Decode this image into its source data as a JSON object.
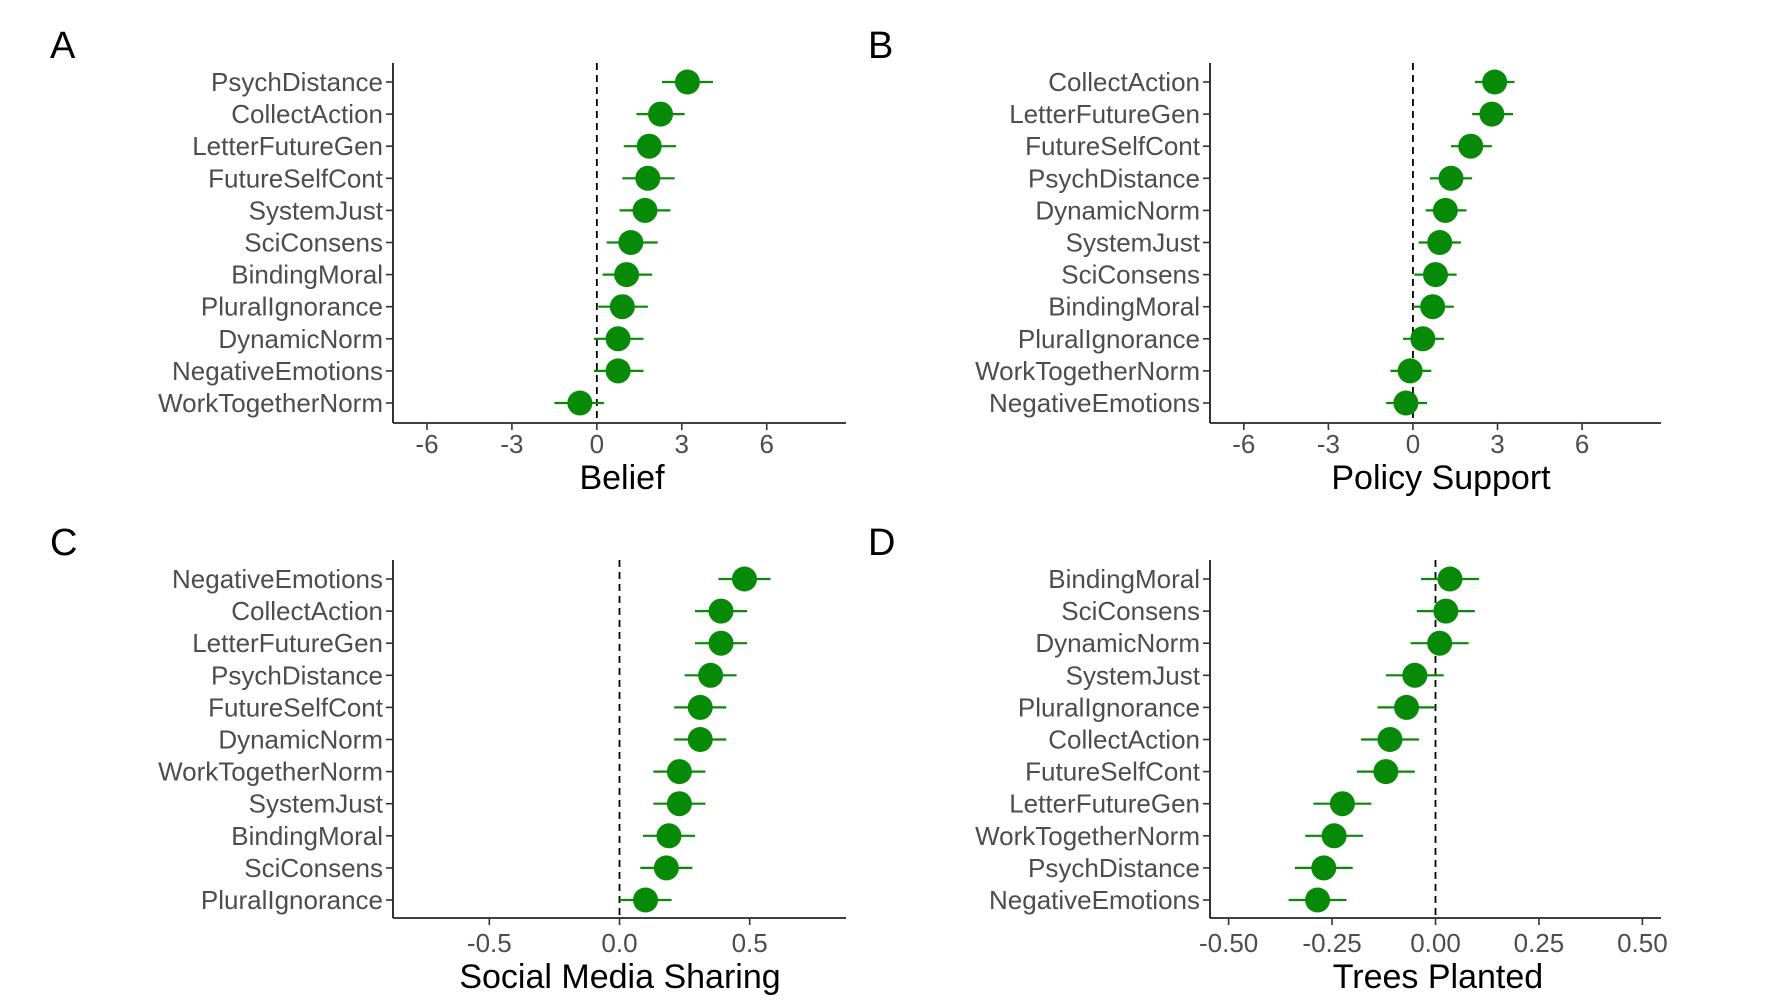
{
  "colors": {
    "point": "#078a07",
    "errorbar": "#078a07"
  },
  "chart_data": [
    {
      "type": "scatter",
      "panel_label": "A",
      "xlabel": "Belief",
      "ylabel": "",
      "xlim": [
        -7.2,
        8.8
      ],
      "xticks": [
        -6,
        -3,
        0,
        3,
        6
      ],
      "xtick_labels": [
        "-6",
        "-3",
        "0",
        "3",
        "6"
      ],
      "reference_line": 0,
      "points": [
        {
          "label": "PsychDistance",
          "value": 3.2,
          "low": 2.3,
          "high": 4.1
        },
        {
          "label": "CollectAction",
          "value": 2.25,
          "low": 1.4,
          "high": 3.1
        },
        {
          "label": "LetterFutureGen",
          "value": 1.85,
          "low": 0.95,
          "high": 2.8
        },
        {
          "label": "FutureSelfCont",
          "value": 1.8,
          "low": 0.9,
          "high": 2.75
        },
        {
          "label": "SystemJust",
          "value": 1.7,
          "low": 0.8,
          "high": 2.6
        },
        {
          "label": "SciConsens",
          "value": 1.2,
          "low": 0.35,
          "high": 2.15
        },
        {
          "label": "BindingMoral",
          "value": 1.05,
          "low": 0.2,
          "high": 1.95
        },
        {
          "label": "PluralIgnorance",
          "value": 0.9,
          "low": 0.05,
          "high": 1.8
        },
        {
          "label": "DynamicNorm",
          "value": 0.75,
          "low": -0.1,
          "high": 1.65
        },
        {
          "label": "NegativeEmotions",
          "value": 0.75,
          "low": -0.1,
          "high": 1.65
        },
        {
          "label": "WorkTogetherNorm",
          "value": -0.6,
          "low": -1.5,
          "high": 0.25
        }
      ]
    },
    {
      "type": "scatter",
      "panel_label": "B",
      "xlabel": "Policy Support",
      "ylabel": "",
      "xlim": [
        -7.2,
        8.8
      ],
      "xticks": [
        -6,
        -3,
        0,
        3,
        6
      ],
      "xtick_labels": [
        "-6",
        "-3",
        "0",
        "3",
        "6"
      ],
      "reference_line": 0,
      "points": [
        {
          "label": "CollectAction",
          "value": 2.9,
          "low": 2.2,
          "high": 3.6
        },
        {
          "label": "LetterFutureGen",
          "value": 2.8,
          "low": 2.1,
          "high": 3.55
        },
        {
          "label": "FutureSelfCont",
          "value": 2.05,
          "low": 1.35,
          "high": 2.8
        },
        {
          "label": "PsychDistance",
          "value": 1.35,
          "low": 0.6,
          "high": 2.1
        },
        {
          "label": "DynamicNorm",
          "value": 1.15,
          "low": 0.45,
          "high": 1.9
        },
        {
          "label": "SystemJust",
          "value": 0.95,
          "low": 0.2,
          "high": 1.7
        },
        {
          "label": "SciConsens",
          "value": 0.8,
          "low": 0.05,
          "high": 1.55
        },
        {
          "label": "BindingMoral",
          "value": 0.7,
          "low": 0.0,
          "high": 1.45
        },
        {
          "label": "PluralIgnorance",
          "value": 0.35,
          "low": -0.35,
          "high": 1.1
        },
        {
          "label": "WorkTogetherNorm",
          "value": -0.1,
          "low": -0.8,
          "high": 0.65
        },
        {
          "label": "NegativeEmotions",
          "value": -0.25,
          "low": -0.95,
          "high": 0.5
        }
      ]
    },
    {
      "type": "scatter",
      "panel_label": "C",
      "xlabel": "Social Media Sharing",
      "ylabel": "",
      "xlim": [
        -0.87,
        0.87
      ],
      "xticks": [
        -0.5,
        0.0,
        0.5
      ],
      "xtick_labels": [
        "-0.5",
        "0.0",
        "0.5"
      ],
      "reference_line": 0,
      "points": [
        {
          "label": "NegativeEmotions",
          "value": 0.48,
          "low": 0.38,
          "high": 0.58
        },
        {
          "label": "CollectAction",
          "value": 0.39,
          "low": 0.29,
          "high": 0.49
        },
        {
          "label": "LetterFutureGen",
          "value": 0.39,
          "low": 0.29,
          "high": 0.49
        },
        {
          "label": "PsychDistance",
          "value": 0.35,
          "low": 0.25,
          "high": 0.45
        },
        {
          "label": "FutureSelfCont",
          "value": 0.31,
          "low": 0.21,
          "high": 0.41
        },
        {
          "label": "DynamicNorm",
          "value": 0.31,
          "low": 0.21,
          "high": 0.41
        },
        {
          "label": "WorkTogetherNorm",
          "value": 0.23,
          "low": 0.13,
          "high": 0.33
        },
        {
          "label": "SystemJust",
          "value": 0.23,
          "low": 0.13,
          "high": 0.33
        },
        {
          "label": "BindingMoral",
          "value": 0.19,
          "low": 0.09,
          "high": 0.29
        },
        {
          "label": "SciConsens",
          "value": 0.18,
          "low": 0.08,
          "high": 0.28
        },
        {
          "label": "PluralIgnorance",
          "value": 0.1,
          "low": 0.0,
          "high": 0.2
        }
      ]
    },
    {
      "type": "scatter",
      "panel_label": "D",
      "xlabel": "Trees Planted",
      "ylabel": "",
      "xlim": [
        -0.545,
        0.545
      ],
      "xticks": [
        -0.5,
        -0.25,
        0.0,
        0.25,
        0.5
      ],
      "xtick_labels": [
        "-0.50",
        "-0.25",
        "0.00",
        "0.25",
        "0.50"
      ],
      "reference_line": 0,
      "points": [
        {
          "label": "BindingMoral",
          "value": 0.035,
          "low": -0.035,
          "high": 0.105
        },
        {
          "label": "SciConsens",
          "value": 0.025,
          "low": -0.045,
          "high": 0.095
        },
        {
          "label": "DynamicNorm",
          "value": 0.01,
          "low": -0.06,
          "high": 0.08
        },
        {
          "label": "SystemJust",
          "value": -0.05,
          "low": -0.12,
          "high": 0.02
        },
        {
          "label": "PluralIgnorance",
          "value": -0.07,
          "low": -0.14,
          "high": 0.0
        },
        {
          "label": "CollectAction",
          "value": -0.11,
          "low": -0.18,
          "high": -0.04
        },
        {
          "label": "FutureSelfCont",
          "value": -0.12,
          "low": -0.19,
          "high": -0.05
        },
        {
          "label": "LetterFutureGen",
          "value": -0.225,
          "low": -0.295,
          "high": -0.155
        },
        {
          "label": "WorkTogetherNorm",
          "value": -0.245,
          "low": -0.315,
          "high": -0.175
        },
        {
          "label": "PsychDistance",
          "value": -0.27,
          "low": -0.34,
          "high": -0.2
        },
        {
          "label": "NegativeEmotions",
          "value": -0.285,
          "low": -0.355,
          "high": -0.215
        }
      ]
    }
  ]
}
